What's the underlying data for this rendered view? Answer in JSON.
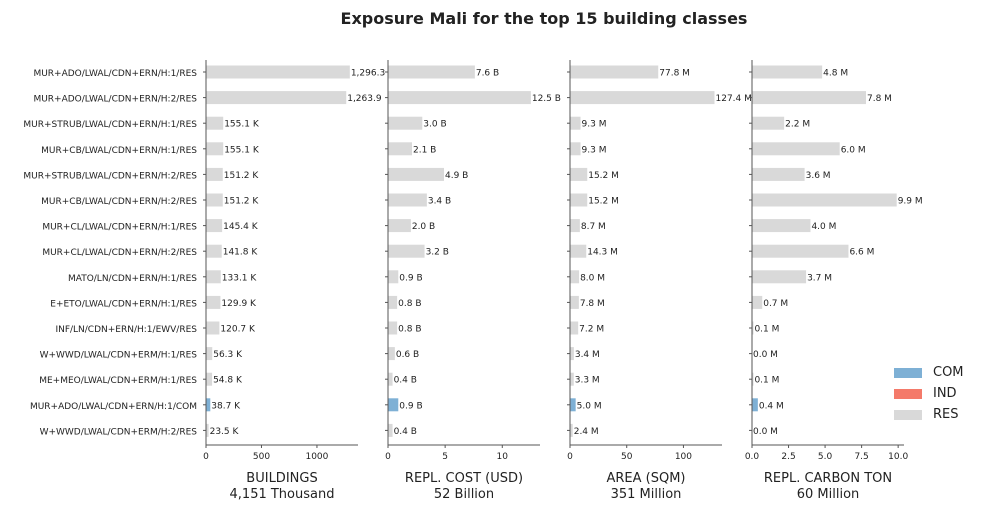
{
  "title": "Exposure Mali for the top 15 building classes",
  "categories": [
    "MUR+ADO/LWAL/CDN+ERN/H:1/RES",
    "MUR+ADO/LWAL/CDN+ERN/H:2/RES",
    "MUR+STRUB/LWAL/CDN+ERN/H:1/RES",
    "MUR+CB/LWAL/CDN+ERN/H:1/RES",
    "MUR+STRUB/LWAL/CDN+ERN/H:2/RES",
    "MUR+CB/LWAL/CDN+ERN/H:2/RES",
    "MUR+CL/LWAL/CDN+ERN/H:1/RES",
    "MUR+CL/LWAL/CDN+ERN/H:2/RES",
    "MATO/LN/CDN+ERN/H:1/RES",
    "E+ETO/LWAL/CDN+ERN/H:1/RES",
    "INF/LN/CDN+ERN/H:1/EWV/RES",
    "W+WWD/LWAL/CDN+ERM/H:1/RES",
    "ME+MEO/LWAL/CDN+ERM/H:1/RES",
    "MUR+ADO/LWAL/CDN+ERN/H:1/COM",
    "W+WWD/LWAL/CDN+ERM/H:2/RES"
  ],
  "occupancy": [
    "RES",
    "RES",
    "RES",
    "RES",
    "RES",
    "RES",
    "RES",
    "RES",
    "RES",
    "RES",
    "RES",
    "RES",
    "RES",
    "COM",
    "RES"
  ],
  "legend": [
    {
      "label": "COM",
      "color": "#7eb0d5"
    },
    {
      "label": "IND",
      "color": "#f47a6a"
    },
    {
      "label": "RES",
      "color": "#d9d9d9"
    }
  ],
  "chart_data": [
    {
      "type": "bar",
      "orientation": "horizontal",
      "xlabel": "BUILDINGS",
      "xlabel2": "4,151 Thousand",
      "xlim": [
        0,
        1370
      ],
      "xticks": [
        0,
        500,
        1000
      ],
      "xtick_labels": [
        "0",
        "500",
        "1000"
      ],
      "values": [
        1296.3,
        1263.9,
        155.1,
        155.1,
        151.2,
        151.2,
        145.4,
        141.8,
        133.1,
        129.9,
        120.7,
        56.3,
        54.8,
        38.7,
        23.5
      ],
      "value_labels": [
        "1,296.3",
        "1,263.9",
        "155.1 K",
        "155.1 K",
        "151.2 K",
        "151.2 K",
        "145.4 K",
        "141.8 K",
        "133.1 K",
        "129.9 K",
        "120.7 K",
        "56.3 K",
        "54.8 K",
        "38.7 K",
        "23.5 K"
      ]
    },
    {
      "type": "bar",
      "orientation": "horizontal",
      "xlabel": "REPL. COST (USD)",
      "xlabel2": "52 Billion",
      "xlim": [
        0,
        13.3
      ],
      "xticks": [
        0,
        5,
        10
      ],
      "xtick_labels": [
        "0",
        "5",
        "10"
      ],
      "values": [
        7.6,
        12.5,
        3.0,
        2.1,
        4.9,
        3.4,
        2.0,
        3.2,
        0.9,
        0.8,
        0.8,
        0.6,
        0.4,
        0.9,
        0.4
      ],
      "value_labels": [
        "7.6 B",
        "12.5 B",
        "3.0 B",
        "2.1 B",
        "4.9 B",
        "3.4 B",
        "2.0 B",
        "3.2 B",
        "0.9 B",
        "0.8 B",
        "0.8 B",
        "0.6 B",
        "0.4 B",
        "0.9 B",
        "0.4 B"
      ]
    },
    {
      "type": "bar",
      "orientation": "horizontal",
      "xlabel": "AREA (SQM)",
      "xlabel2": "351 Million",
      "xlim": [
        0,
        134
      ],
      "xticks": [
        0,
        50,
        100
      ],
      "xtick_labels": [
        "0",
        "50",
        "100"
      ],
      "values": [
        77.8,
        127.4,
        9.3,
        9.3,
        15.2,
        15.2,
        8.7,
        14.3,
        8.0,
        7.8,
        7.2,
        3.4,
        3.3,
        5.0,
        2.4
      ],
      "value_labels": [
        "77.8 M",
        "127.4 M",
        "9.3 M",
        "9.3 M",
        "15.2 M",
        "15.2 M",
        "8.7 M",
        "14.3 M",
        "8.0 M",
        "7.8 M",
        "7.2 M",
        "3.4 M",
        "3.3 M",
        "5.0 M",
        "2.4 M"
      ]
    },
    {
      "type": "bar",
      "orientation": "horizontal",
      "xlabel": "REPL. CARBON TON",
      "xlabel2": "60 Million",
      "xlim": [
        0,
        10.4
      ],
      "xticks": [
        0,
        2.5,
        5,
        7.5,
        10
      ],
      "xtick_labels": [
        "0.0",
        "2.5",
        "5.0",
        "7.5",
        "10.0"
      ],
      "values": [
        4.8,
        7.8,
        2.2,
        6.0,
        3.6,
        9.9,
        4.0,
        6.6,
        3.7,
        0.7,
        0.1,
        0.0,
        0.1,
        0.4,
        0.0
      ],
      "value_labels": [
        "4.8 M",
        "7.8 M",
        "2.2 M",
        "6.0 M",
        "3.6 M",
        "9.9 M",
        "4.0 M",
        "6.6 M",
        "3.7 M",
        "0.7 M",
        "0.1 M",
        "0.0 M",
        "0.1 M",
        "0.4 M",
        "0.0 M"
      ]
    }
  ]
}
